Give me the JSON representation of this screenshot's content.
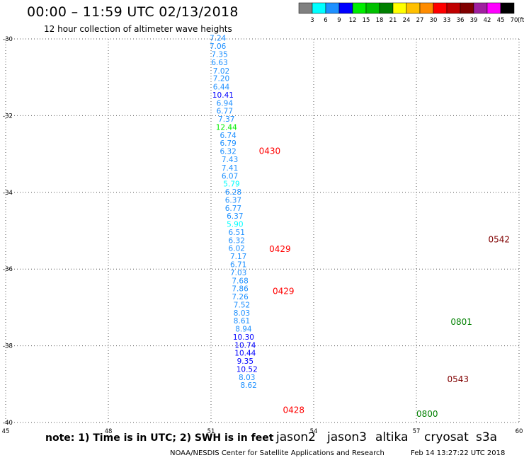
{
  "header": {
    "title": "00:00 – 11:59 UTC 02/13/2018",
    "subtitle": "12 hour collection of altimeter wave heights"
  },
  "legend": {
    "swatches": [
      {
        "label": "3",
        "color": "#808080"
      },
      {
        "label": "6",
        "color": "#00ffff"
      },
      {
        "label": "9",
        "color": "#1e90ff"
      },
      {
        "label": "12",
        "color": "#0000ff"
      },
      {
        "label": "15",
        "color": "#00ee00"
      },
      {
        "label": "18",
        "color": "#00c000"
      },
      {
        "label": "21",
        "color": "#008000"
      },
      {
        "label": "24",
        "color": "#ffff00"
      },
      {
        "label": "27",
        "color": "#ffc000"
      },
      {
        "label": "30",
        "color": "#ff8c00"
      },
      {
        "label": "33",
        "color": "#ff0000"
      },
      {
        "label": "36",
        "color": "#c00000"
      },
      {
        "label": "39",
        "color": "#800000"
      },
      {
        "label": "42",
        "color": "#a020a0"
      },
      {
        "label": "45",
        "color": "#ff00ff"
      },
      {
        "label": "70",
        "color": "#000000"
      }
    ],
    "unit": "(ft)"
  },
  "chart_data": {
    "type": "scatter",
    "title": "00:00 – 11:59 UTC 02/13/2018",
    "subtitle": "12 hour collection of altimeter wave heights",
    "xlim": [
      45,
      60
    ],
    "ylim": [
      -40,
      -30
    ],
    "x_ticks": [
      "45",
      "48",
      "51",
      "54",
      "57",
      "60"
    ],
    "y_ticks": [
      "-30",
      "-32",
      "-34",
      "-36",
      "-38",
      "-40"
    ],
    "grid": true,
    "series": [
      {
        "name": "jason2",
        "points": [
          {
            "x": 51.2,
            "y": -30.05,
            "v": "7.24"
          },
          {
            "x": 51.2,
            "y": -30.26,
            "v": "7.06"
          },
          {
            "x": 51.25,
            "y": -30.47,
            "v": "7.35"
          },
          {
            "x": 51.25,
            "y": -30.68,
            "v": "6.63"
          },
          {
            "x": 51.3,
            "y": -30.9,
            "v": "7.02"
          },
          {
            "x": 51.3,
            "y": -31.1,
            "v": "7.20"
          },
          {
            "x": 51.3,
            "y": -31.32,
            "v": "6.44"
          },
          {
            "x": 51.35,
            "y": -31.53,
            "v": "10.41"
          },
          {
            "x": 51.4,
            "y": -31.74,
            "v": "6.94"
          },
          {
            "x": 51.4,
            "y": -31.95,
            "v": "6.77"
          },
          {
            "x": 51.45,
            "y": -32.16,
            "v": "7.37"
          },
          {
            "x": 51.45,
            "y": -32.37,
            "v": "12.44"
          },
          {
            "x": 51.5,
            "y": -32.58,
            "v": "6.74"
          },
          {
            "x": 51.5,
            "y": -32.79,
            "v": "6.79"
          },
          {
            "x": 51.5,
            "y": -33.0,
            "v": "6.32"
          },
          {
            "x": 51.55,
            "y": -33.21,
            "v": "7.43"
          },
          {
            "x": 51.55,
            "y": -33.43,
            "v": "7.41"
          },
          {
            "x": 51.55,
            "y": -33.64,
            "v": "6.07"
          },
          {
            "x": 51.6,
            "y": -33.85,
            "v": "5.79"
          },
          {
            "x": 51.65,
            "y": -34.06,
            "v": "6.28"
          },
          {
            "x": 51.65,
            "y": -34.27,
            "v": "6.37"
          },
          {
            "x": 51.65,
            "y": -34.48,
            "v": "6.77"
          },
          {
            "x": 51.7,
            "y": -34.69,
            "v": "6.37"
          },
          {
            "x": 51.7,
            "y": -34.9,
            "v": "5.90"
          },
          {
            "x": 51.75,
            "y": -35.11,
            "v": "6.51"
          },
          {
            "x": 51.75,
            "y": -35.32,
            "v": "6.32"
          },
          {
            "x": 51.75,
            "y": -35.53,
            "v": "6.02"
          },
          {
            "x": 51.8,
            "y": -35.74,
            "v": "7.17"
          },
          {
            "x": 51.8,
            "y": -35.95,
            "v": "6.71"
          },
          {
            "x": 51.8,
            "y": -36.16,
            "v": "7.03"
          },
          {
            "x": 51.85,
            "y": -36.37,
            "v": "7.68"
          },
          {
            "x": 51.85,
            "y": -36.58,
            "v": "7.86"
          },
          {
            "x": 51.85,
            "y": -36.79,
            "v": "7.26"
          },
          {
            "x": 51.9,
            "y": -37.0,
            "v": "7.52"
          },
          {
            "x": 51.9,
            "y": -37.21,
            "v": "8.03"
          },
          {
            "x": 51.9,
            "y": -37.42,
            "v": "8.61"
          },
          {
            "x": 51.95,
            "y": -37.63,
            "v": "8.94"
          },
          {
            "x": 51.95,
            "y": -37.84,
            "v": "10.30"
          },
          {
            "x": 52.0,
            "y": -38.05,
            "v": "10.74"
          },
          {
            "x": 52.0,
            "y": -38.26,
            "v": "10.44"
          },
          {
            "x": 52.0,
            "y": -38.47,
            "v": "9.35"
          },
          {
            "x": 52.05,
            "y": -38.68,
            "v": "10.52"
          },
          {
            "x": 52.05,
            "y": -38.89,
            "v": "8.03"
          },
          {
            "x": 52.1,
            "y": -39.1,
            "v": "8.62"
          }
        ]
      }
    ],
    "time_labels": [
      {
        "x": 52.4,
        "y": -33.0,
        "label": "0430",
        "color": "#ff0000"
      },
      {
        "x": 52.7,
        "y": -35.55,
        "label": "0429",
        "color": "#ff0000"
      },
      {
        "x": 52.8,
        "y": -36.65,
        "label": "0429",
        "color": "#ff0000"
      },
      {
        "x": 53.1,
        "y": -39.75,
        "label": "0428",
        "color": "#ff0000"
      },
      {
        "x": 59.1,
        "y": -35.3,
        "label": "0542",
        "color": "#800000"
      },
      {
        "x": 58.0,
        "y": -37.45,
        "label": "0801",
        "color": "#008000"
      },
      {
        "x": 57.9,
        "y": -38.95,
        "label": "0543",
        "color": "#800000"
      },
      {
        "x": 57.0,
        "y": -39.85,
        "label": "0800",
        "color": "#008000"
      }
    ]
  },
  "note": "note: 1) Time is in UTC; 2) SWH is in feet",
  "satellites": [
    {
      "label": "jason2",
      "color": "#0000ff"
    },
    {
      "label": "jason3",
      "color": "#008000"
    },
    {
      "label": "altika",
      "color": "#ff8c00"
    },
    {
      "label": "cryosat",
      "color": "#ff0000"
    },
    {
      "label": "s3a",
      "color": "#800000"
    }
  ],
  "footer": {
    "credit": "NOAA/NESDIS Center for Satellite Applications and Research",
    "date": "Feb 14 13:27:22 UTC 2018"
  }
}
